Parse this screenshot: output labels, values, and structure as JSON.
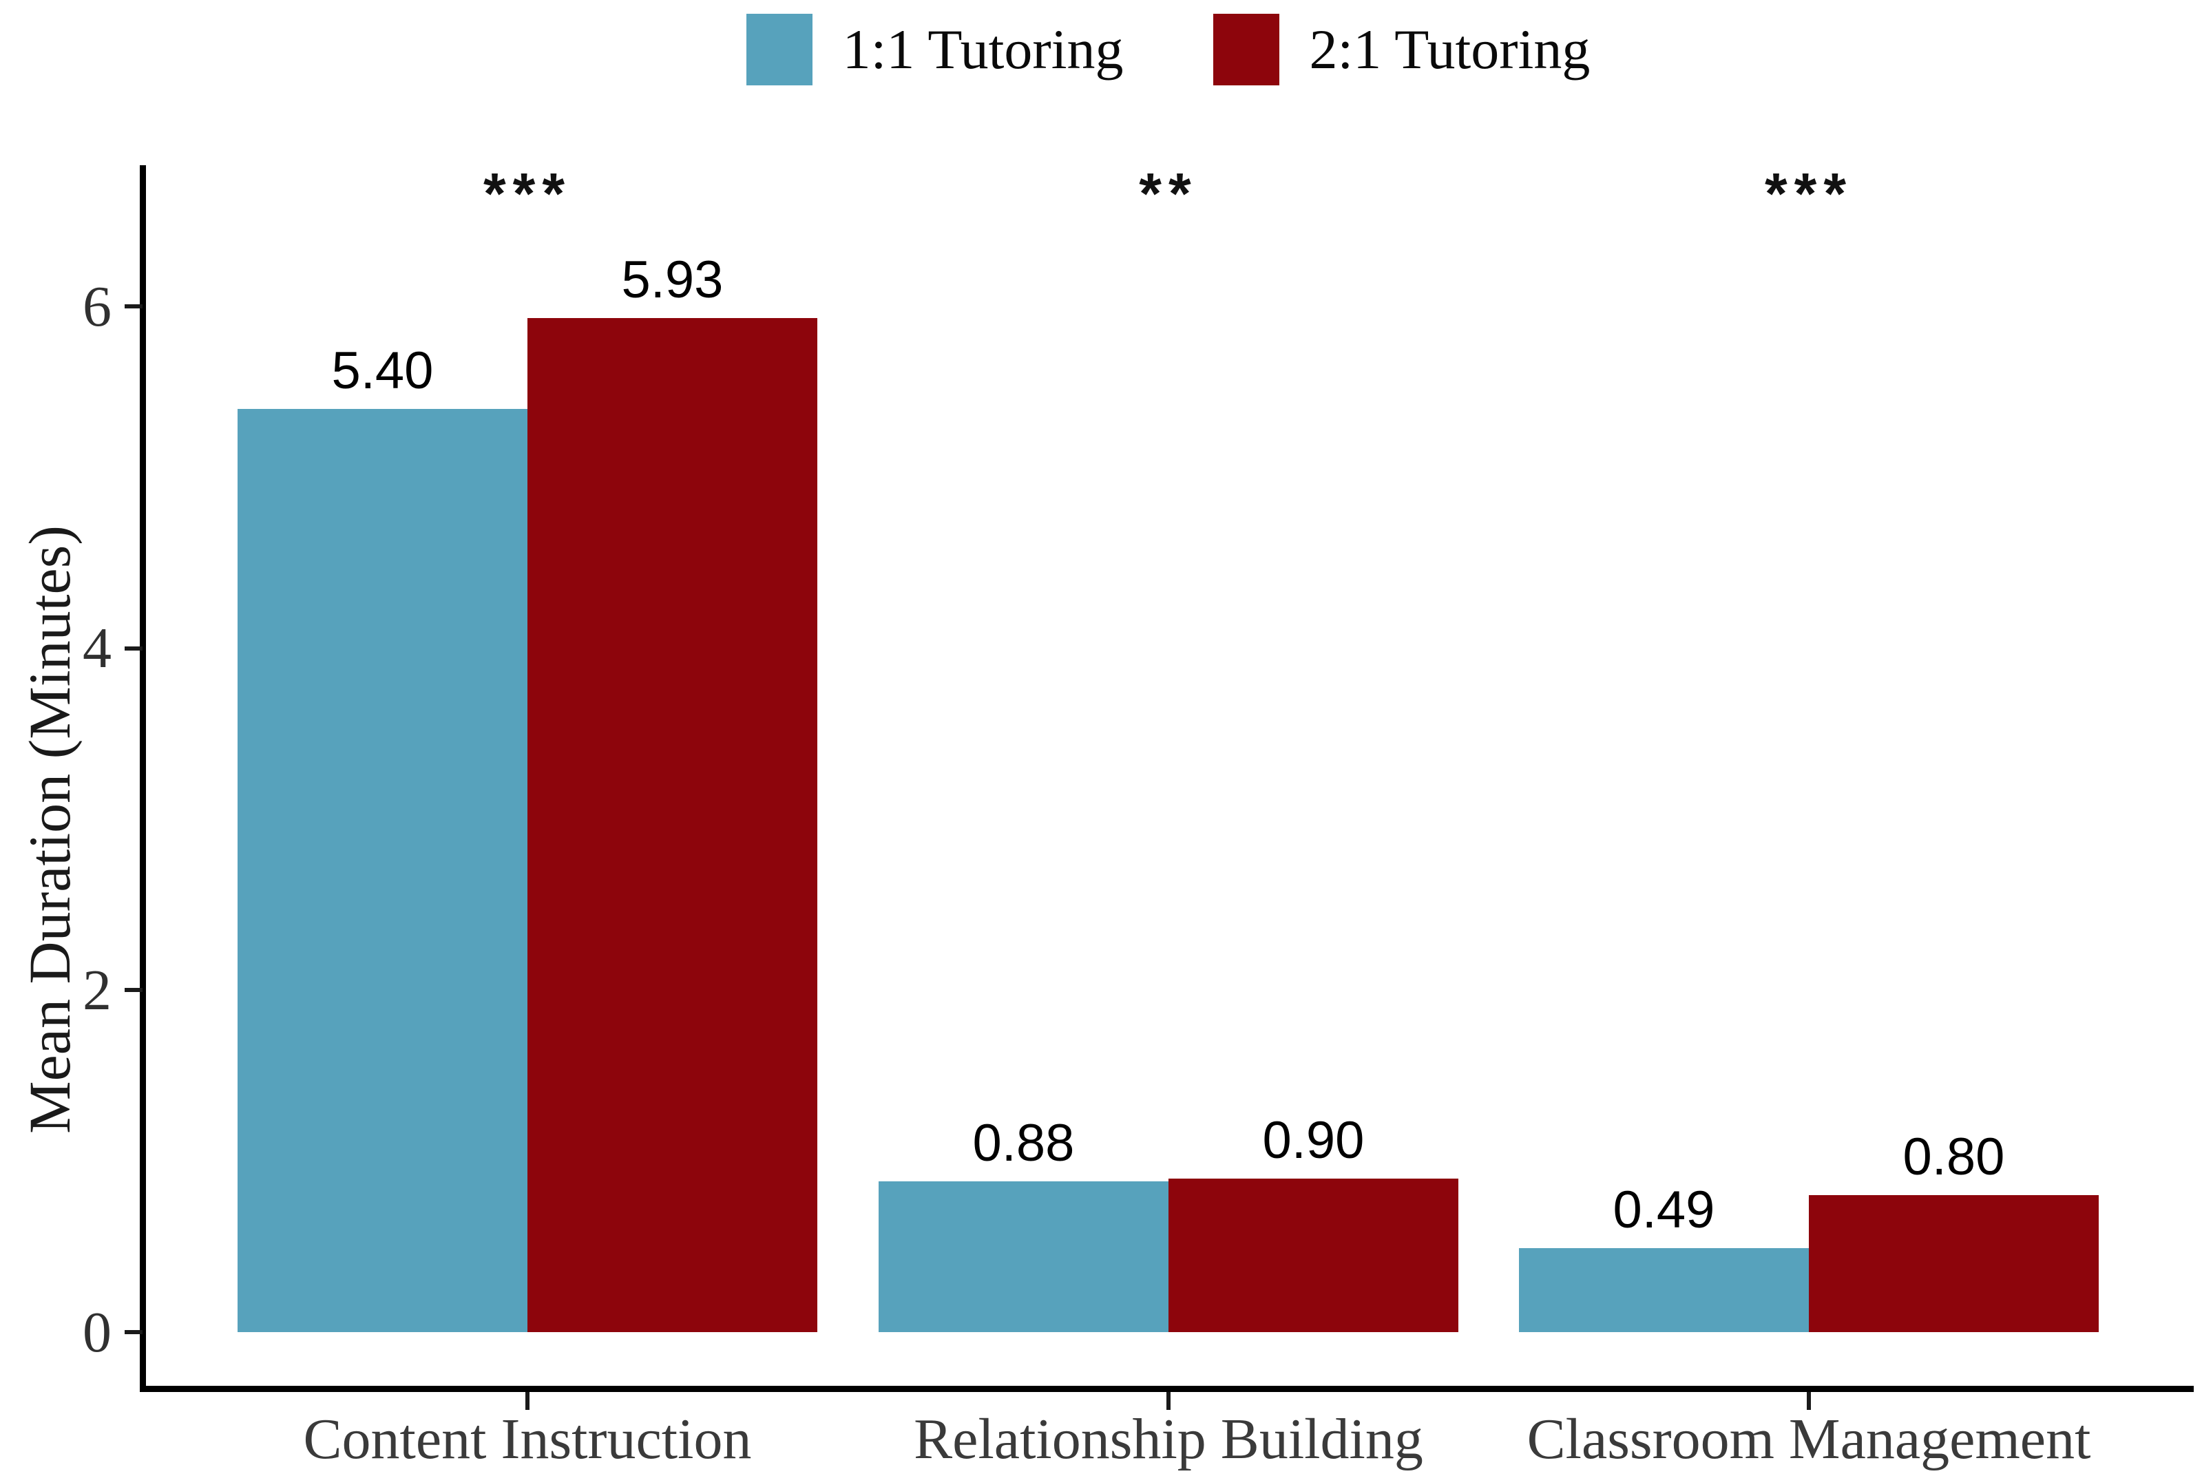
{
  "chart_data": {
    "type": "bar",
    "title": "",
    "categories": [
      "Content Instruction",
      "Relationship Building",
      "Classroom Management"
    ],
    "series": [
      {
        "name": "1:1 Tutoring",
        "color": "#57A2BC",
        "values": [
          5.4,
          0.88,
          0.49
        ],
        "value_labels": [
          "5.40",
          "0.88",
          "0.49"
        ]
      },
      {
        "name": "2:1 Tutoring",
        "color": "#8D050C",
        "values": [
          5.93,
          0.9,
          0.8
        ],
        "value_labels": [
          "5.93",
          "0.90",
          "0.80"
        ]
      }
    ],
    "significance_by_category": [
      "***",
      "**",
      "***"
    ],
    "xlabel": "",
    "ylabel": "Mean Duration (Minutes)",
    "yticks": [
      "0",
      "2",
      "4",
      "6"
    ],
    "ylim": [
      0,
      6.8
    ],
    "legend_position": "top-center",
    "grid": false,
    "colors": {
      "series_1_1_tutoring": "#57A2BC",
      "series_2_1_tutoring": "#8D050C",
      "axis_line": "#000000",
      "ytick_label": "#303030",
      "category_label": "#3a3a3a",
      "value_label": "#000000",
      "background": "#ffffff"
    }
  }
}
